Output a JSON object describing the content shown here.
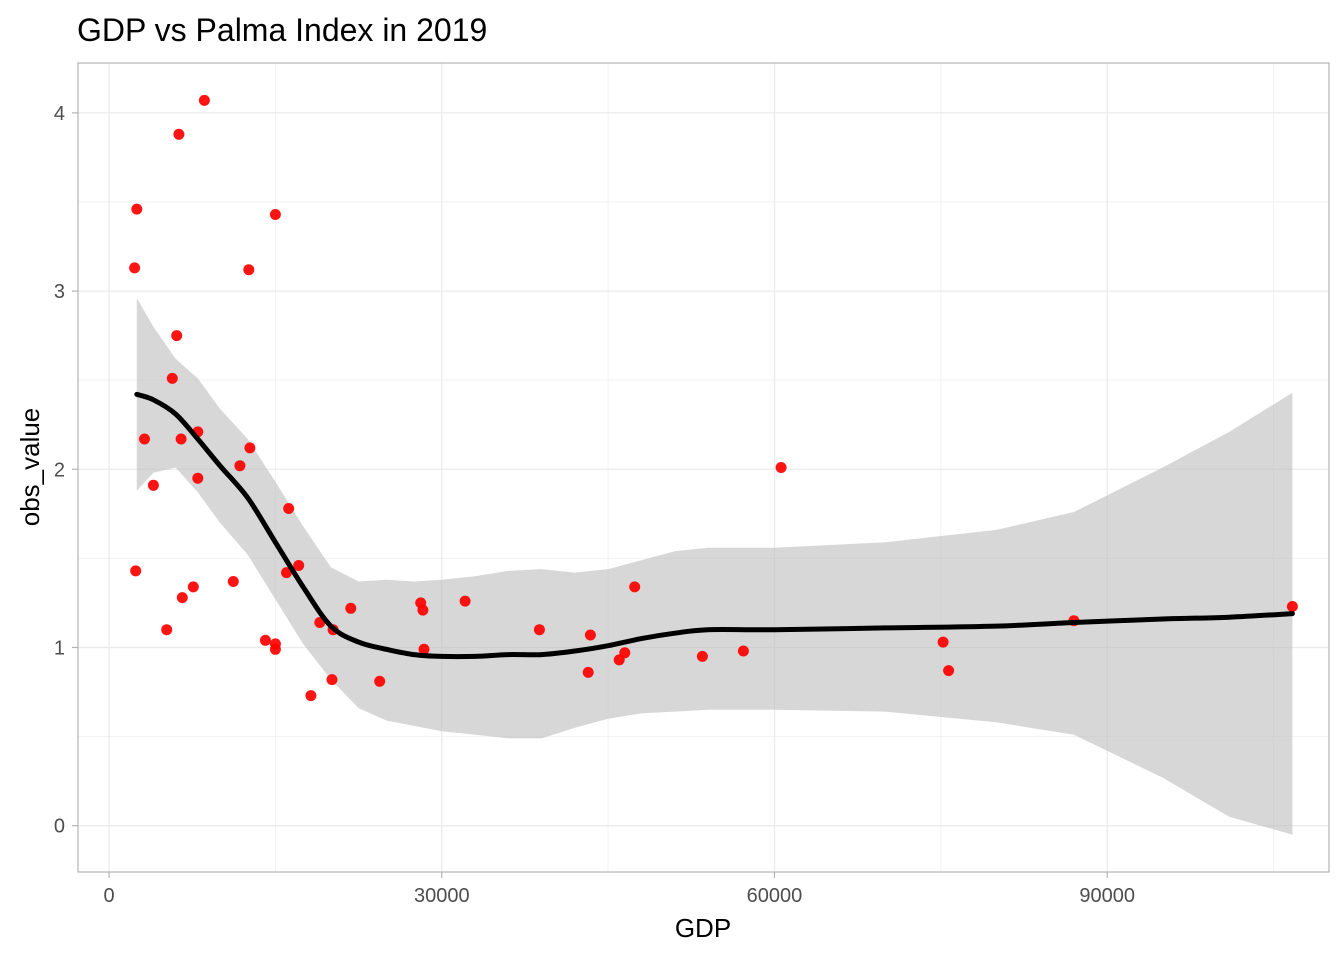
{
  "chart_data": {
    "type": "scatter",
    "title": "GDP vs Palma Index in 2019",
    "xlabel": "GDP",
    "ylabel": "obs_value",
    "xlim": [
      -2800,
      110000
    ],
    "ylim": [
      -0.26,
      4.28
    ],
    "x_ticks": [
      0,
      30000,
      60000,
      90000
    ],
    "x_minor_ticks": [
      15000,
      45000,
      75000,
      105000
    ],
    "y_ticks": [
      0,
      1,
      2,
      3,
      4
    ],
    "y_minor_ticks": [
      0.5,
      1.5,
      2.5,
      3.5
    ],
    "grid": true,
    "legend": "none",
    "colors": {
      "points": "#ff0000",
      "points_overlap": "#d94040",
      "smooth_line": "#000000",
      "confidence_band": "#bfbfbf",
      "grid": "#ebebeb",
      "panel_border": "#b3b3b3"
    },
    "series": [
      {
        "kind": "points",
        "points": [
          {
            "x": 2500,
            "y": 3.46
          },
          {
            "x": 2300,
            "y": 3.13
          },
          {
            "x": 2400,
            "y": 1.43
          },
          {
            "x": 3200,
            "y": 2.17
          },
          {
            "x": 4000,
            "y": 1.91
          },
          {
            "x": 5200,
            "y": 1.1
          },
          {
            "x": 5700,
            "y": 2.51
          },
          {
            "x": 6100,
            "y": 2.75
          },
          {
            "x": 6300,
            "y": 3.88
          },
          {
            "x": 6500,
            "y": 2.17
          },
          {
            "x": 6600,
            "y": 1.28
          },
          {
            "x": 7600,
            "y": 1.34
          },
          {
            "x": 8000,
            "y": 1.95
          },
          {
            "x": 8000,
            "y": 2.21
          },
          {
            "x": 8600,
            "y": 4.07
          },
          {
            "x": 11200,
            "y": 1.37
          },
          {
            "x": 11800,
            "y": 2.02
          },
          {
            "x": 12600,
            "y": 3.12
          },
          {
            "x": 12700,
            "y": 2.12
          },
          {
            "x": 14100,
            "y": 1.04
          },
          {
            "x": 15000,
            "y": 3.43
          },
          {
            "x": 15000,
            "y": 1.02
          },
          {
            "x": 15000,
            "y": 0.99
          },
          {
            "x": 16000,
            "y": 1.42
          },
          {
            "x": 16200,
            "y": 1.78
          },
          {
            "x": 17100,
            "y": 1.46
          },
          {
            "x": 18200,
            "y": 0.73
          },
          {
            "x": 19000,
            "y": 1.14
          },
          {
            "x": 20100,
            "y": 0.82
          },
          {
            "x": 20200,
            "y": 1.1
          },
          {
            "x": 21800,
            "y": 1.22
          },
          {
            "x": 24400,
            "y": 0.81
          },
          {
            "x": 28100,
            "y": 1.25
          },
          {
            "x": 28300,
            "y": 1.21
          },
          {
            "x": 28400,
            "y": 0.99
          },
          {
            "x": 32100,
            "y": 1.26
          },
          {
            "x": 38800,
            "y": 1.1
          },
          {
            "x": 43200,
            "y": 0.86
          },
          {
            "x": 43400,
            "y": 1.07
          },
          {
            "x": 46000,
            "y": 0.93
          },
          {
            "x": 46500,
            "y": 0.97
          },
          {
            "x": 47400,
            "y": 1.34
          },
          {
            "x": 53500,
            "y": 0.95
          },
          {
            "x": 57200,
            "y": 0.98
          },
          {
            "x": 60600,
            "y": 2.01
          },
          {
            "x": 75200,
            "y": 1.03
          },
          {
            "x": 75700,
            "y": 0.87
          },
          {
            "x": 87000,
            "y": 1.15
          },
          {
            "x": 106700,
            "y": 1.23
          }
        ]
      },
      {
        "kind": "smooth",
        "points": [
          {
            "x": 2500,
            "y": 2.42,
            "lo": 1.88,
            "hi": 2.96
          },
          {
            "x": 4000,
            "y": 2.39,
            "lo": 1.98,
            "hi": 2.8
          },
          {
            "x": 6000,
            "y": 2.31,
            "lo": 2.01,
            "hi": 2.62
          },
          {
            "x": 8000,
            "y": 2.17,
            "lo": 1.87,
            "hi": 2.51
          },
          {
            "x": 10000,
            "y": 2.02,
            "lo": 1.7,
            "hi": 2.34
          },
          {
            "x": 12500,
            "y": 1.84,
            "lo": 1.52,
            "hi": 2.17
          },
          {
            "x": 15000,
            "y": 1.59,
            "lo": 1.27,
            "hi": 1.93
          },
          {
            "x": 17500,
            "y": 1.34,
            "lo": 1.02,
            "hi": 1.68
          },
          {
            "x": 20000,
            "y": 1.12,
            "lo": 0.82,
            "hi": 1.45
          },
          {
            "x": 22500,
            "y": 1.03,
            "lo": 0.66,
            "hi": 1.37
          },
          {
            "x": 25000,
            "y": 0.99,
            "lo": 0.59,
            "hi": 1.38
          },
          {
            "x": 27500,
            "y": 0.96,
            "lo": 0.56,
            "hi": 1.37
          },
          {
            "x": 30000,
            "y": 0.95,
            "lo": 0.53,
            "hi": 1.38
          },
          {
            "x": 33000,
            "y": 0.95,
            "lo": 0.51,
            "hi": 1.4
          },
          {
            "x": 36000,
            "y": 0.96,
            "lo": 0.49,
            "hi": 1.43
          },
          {
            "x": 39000,
            "y": 0.96,
            "lo": 0.49,
            "hi": 1.44
          },
          {
            "x": 42000,
            "y": 0.98,
            "lo": 0.55,
            "hi": 1.42
          },
          {
            "x": 45000,
            "y": 1.01,
            "lo": 0.6,
            "hi": 1.44
          },
          {
            "x": 48000,
            "y": 1.05,
            "lo": 0.63,
            "hi": 1.49
          },
          {
            "x": 51000,
            "y": 1.08,
            "lo": 0.64,
            "hi": 1.54
          },
          {
            "x": 54000,
            "y": 1.1,
            "lo": 0.65,
            "hi": 1.56
          },
          {
            "x": 60000,
            "y": 1.1,
            "lo": 0.65,
            "hi": 1.56
          },
          {
            "x": 70000,
            "y": 1.11,
            "lo": 0.64,
            "hi": 1.59
          },
          {
            "x": 80000,
            "y": 1.12,
            "lo": 0.58,
            "hi": 1.66
          },
          {
            "x": 87000,
            "y": 1.14,
            "lo": 0.51,
            "hi": 1.76
          },
          {
            "x": 95000,
            "y": 1.16,
            "lo": 0.27,
            "hi": 2.01
          },
          {
            "x": 101000,
            "y": 1.17,
            "lo": 0.05,
            "hi": 2.21
          },
          {
            "x": 106700,
            "y": 1.19,
            "lo": -0.05,
            "hi": 2.43
          }
        ]
      }
    ]
  }
}
